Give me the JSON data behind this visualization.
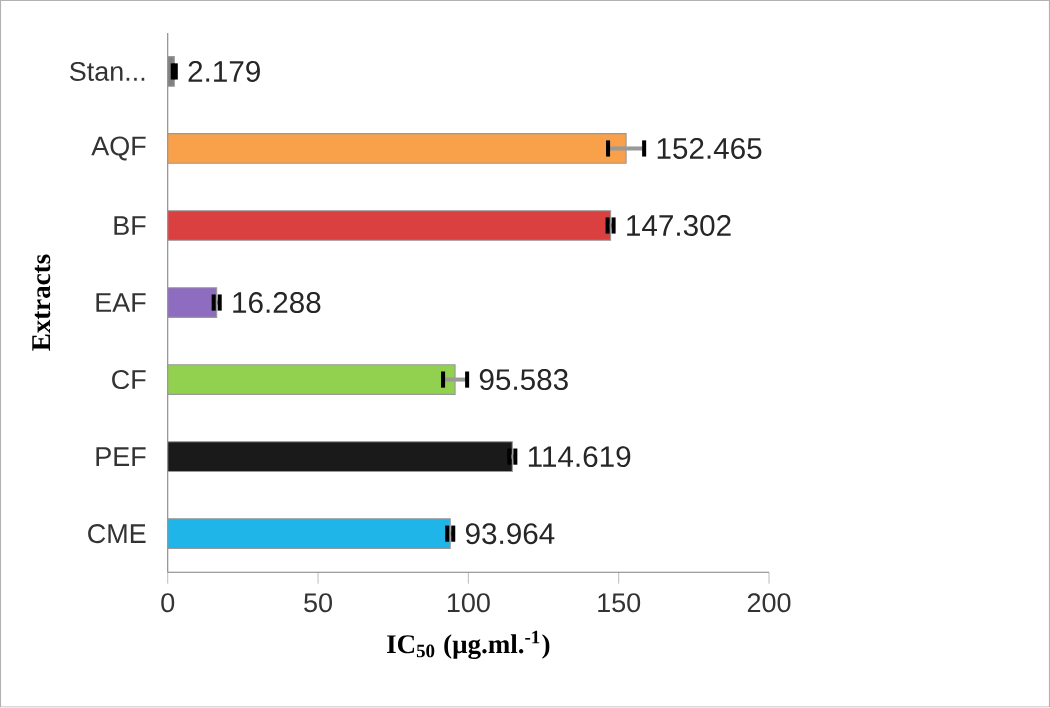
{
  "chart_data": {
    "type": "bar",
    "orientation": "horizontal",
    "xlabel": "IC$_{50}$ (µg.ml.$^{-1}$)",
    "ylabel": "Extracts",
    "categories": [
      "Stan...",
      "AQF",
      "BF",
      "EAF",
      "CF",
      "PEF",
      "CME"
    ],
    "values": [
      2.179,
      152.465,
      147.302,
      16.288,
      95.583,
      114.619,
      93.964
    ],
    "errors": [
      0.5,
      6,
      1,
      1,
      4,
      1,
      1
    ],
    "colors": [
      "#808080",
      "#f9a04a",
      "#d9403f",
      "#8e6cbf",
      "#92d050",
      "#1a1a1a",
      "#1fb5e8"
    ],
    "xlim": [
      0,
      200
    ],
    "xticks": [
      0,
      50,
      100,
      150,
      200
    ],
    "data_labels": true
  }
}
